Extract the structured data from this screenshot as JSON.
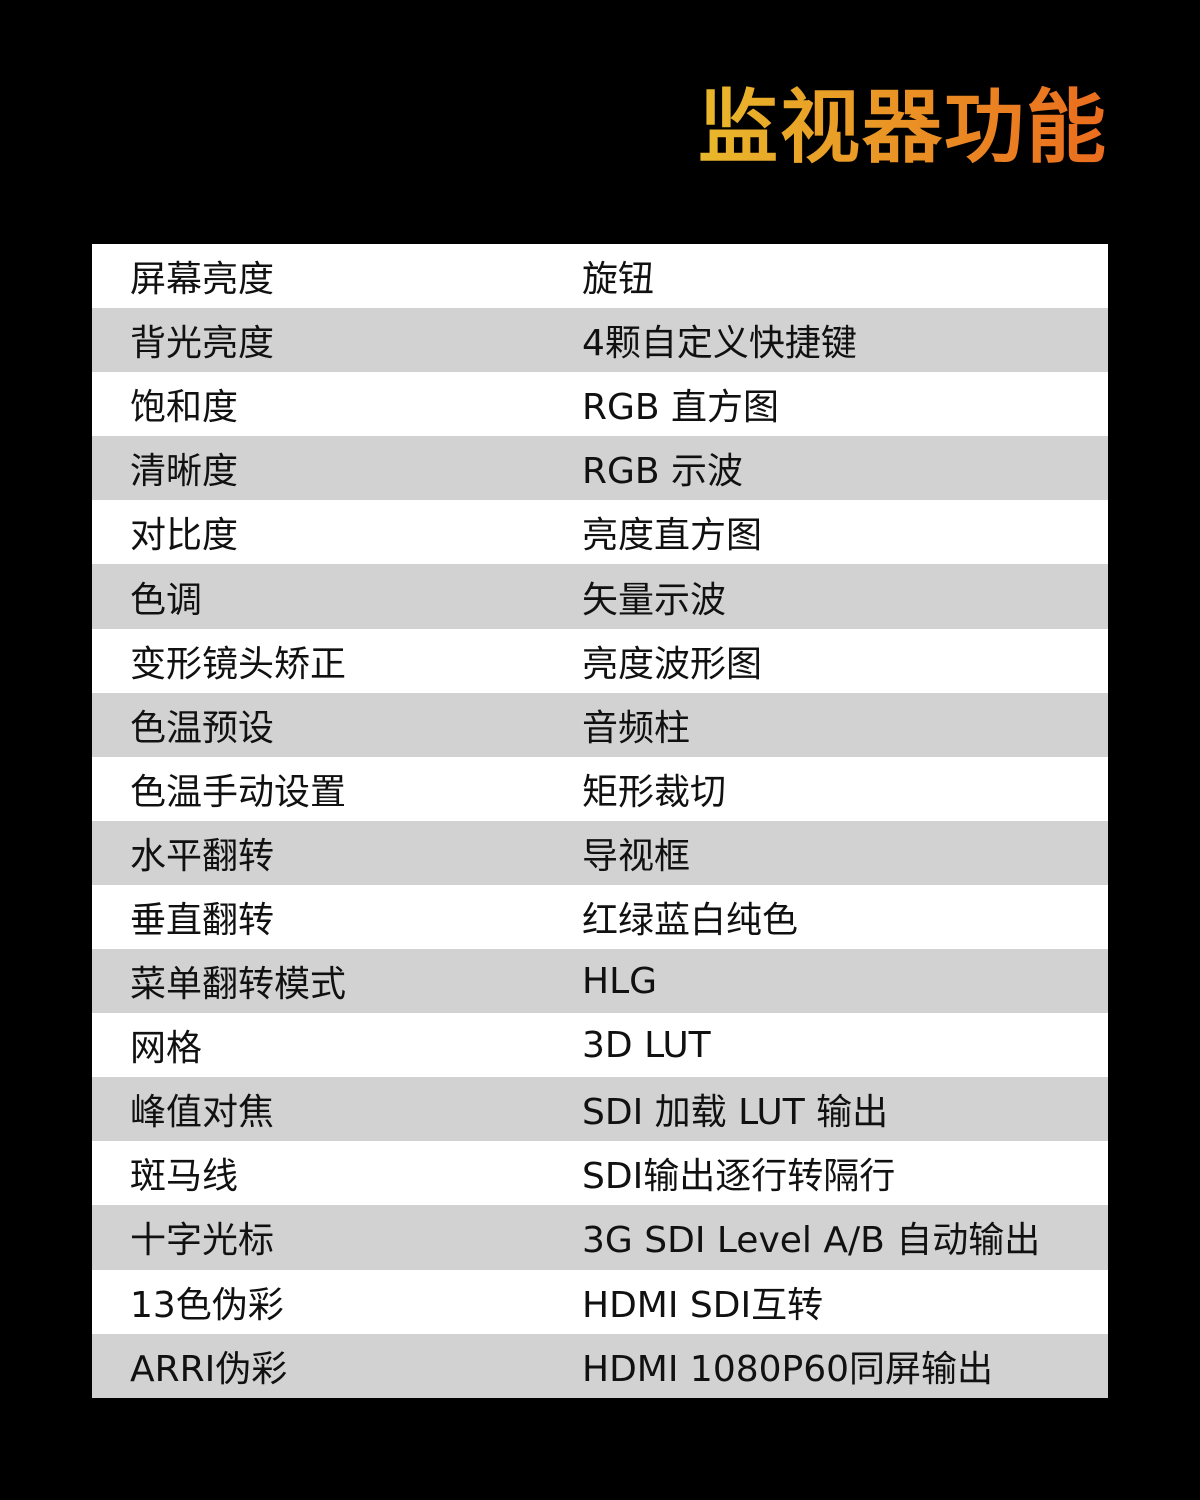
{
  "title": "监视器功能",
  "rows": [
    [
      "屏幕亮度",
      "旋钮"
    ],
    [
      "背光亮度",
      "4颗自定义快捷键"
    ],
    [
      "饱和度",
      "RGB 直方图"
    ],
    [
      "清晰度",
      "RGB 示波"
    ],
    [
      "对比度",
      "亮度直方图"
    ],
    [
      "色调",
      "矢量示波"
    ],
    [
      "变形镜头矫正",
      "亮度波形图"
    ],
    [
      "色温预设",
      "音频柱"
    ],
    [
      "色温手动设置",
      "矩形裁切"
    ],
    [
      "水平翻转",
      "导视框"
    ],
    [
      "垂直翻转",
      "红绿蓝白纯色"
    ],
    [
      "菜单翻转模式",
      "HLG"
    ],
    [
      "网格",
      "3D LUT"
    ],
    [
      "峰值对焦",
      "SDI 加载 LUT 输出"
    ],
    [
      "斑马线",
      "SDI输出逐行转隔行"
    ],
    [
      "十字光标",
      "3G SDI Level A/B 自动输出"
    ],
    [
      "13色伪彩",
      "HDMI SDI互转"
    ],
    [
      "ARRI伪彩",
      "HDMI 1080P60同屏输出"
    ]
  ],
  "colors": {
    "title_start": "#e9b82b",
    "title_end": "#ea6c1e",
    "row_light": "#ffffff",
    "row_dark": "#d2d2d2",
    "background": "#000000"
  }
}
